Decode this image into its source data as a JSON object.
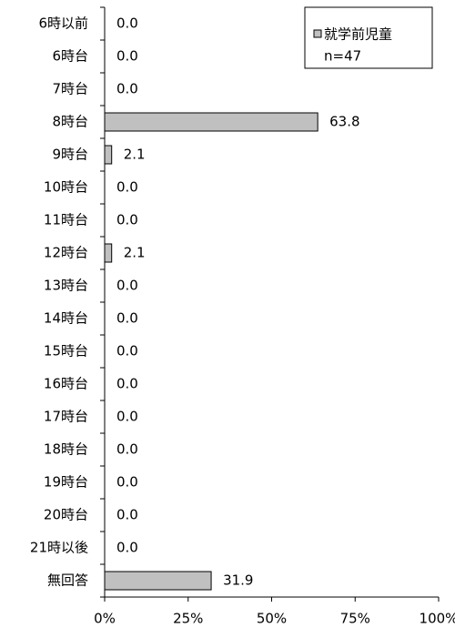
{
  "chart_data": {
    "type": "bar",
    "orientation": "horizontal",
    "categories": [
      "6時以前",
      "6時台",
      "7時台",
      "8時台",
      "9時台",
      "10時台",
      "11時台",
      "12時台",
      "13時台",
      "14時台",
      "15時台",
      "16時台",
      "17時台",
      "18時台",
      "19時台",
      "20時台",
      "21時以後",
      "無回答"
    ],
    "series": [
      {
        "name": "就学前児童",
        "color": "#c0c0c0",
        "values": [
          0,
          0,
          0,
          63.8,
          2.1,
          0,
          0,
          2.1,
          0,
          0,
          0,
          0,
          0,
          0,
          0,
          0,
          0,
          31.9
        ],
        "value_labels": [
          "0.0",
          "0.0",
          "0.0",
          "63.8",
          "2.1",
          "0.0",
          "0.0",
          "2.1",
          "0.0",
          "0.0",
          "0.0",
          "0.0",
          "0.0",
          "0.0",
          "0.0",
          "0.0",
          "0.0",
          "31.9"
        ]
      }
    ],
    "legend_note": "n=47",
    "legend": "top-right",
    "xlim": [
      0,
      100
    ],
    "xticks": [
      {
        "value": 0,
        "label": "0%"
      },
      {
        "value": 25,
        "label": "25%"
      },
      {
        "value": 50,
        "label": "50%"
      },
      {
        "value": 75,
        "label": "75%"
      },
      {
        "value": 100,
        "label": "100%"
      }
    ]
  }
}
